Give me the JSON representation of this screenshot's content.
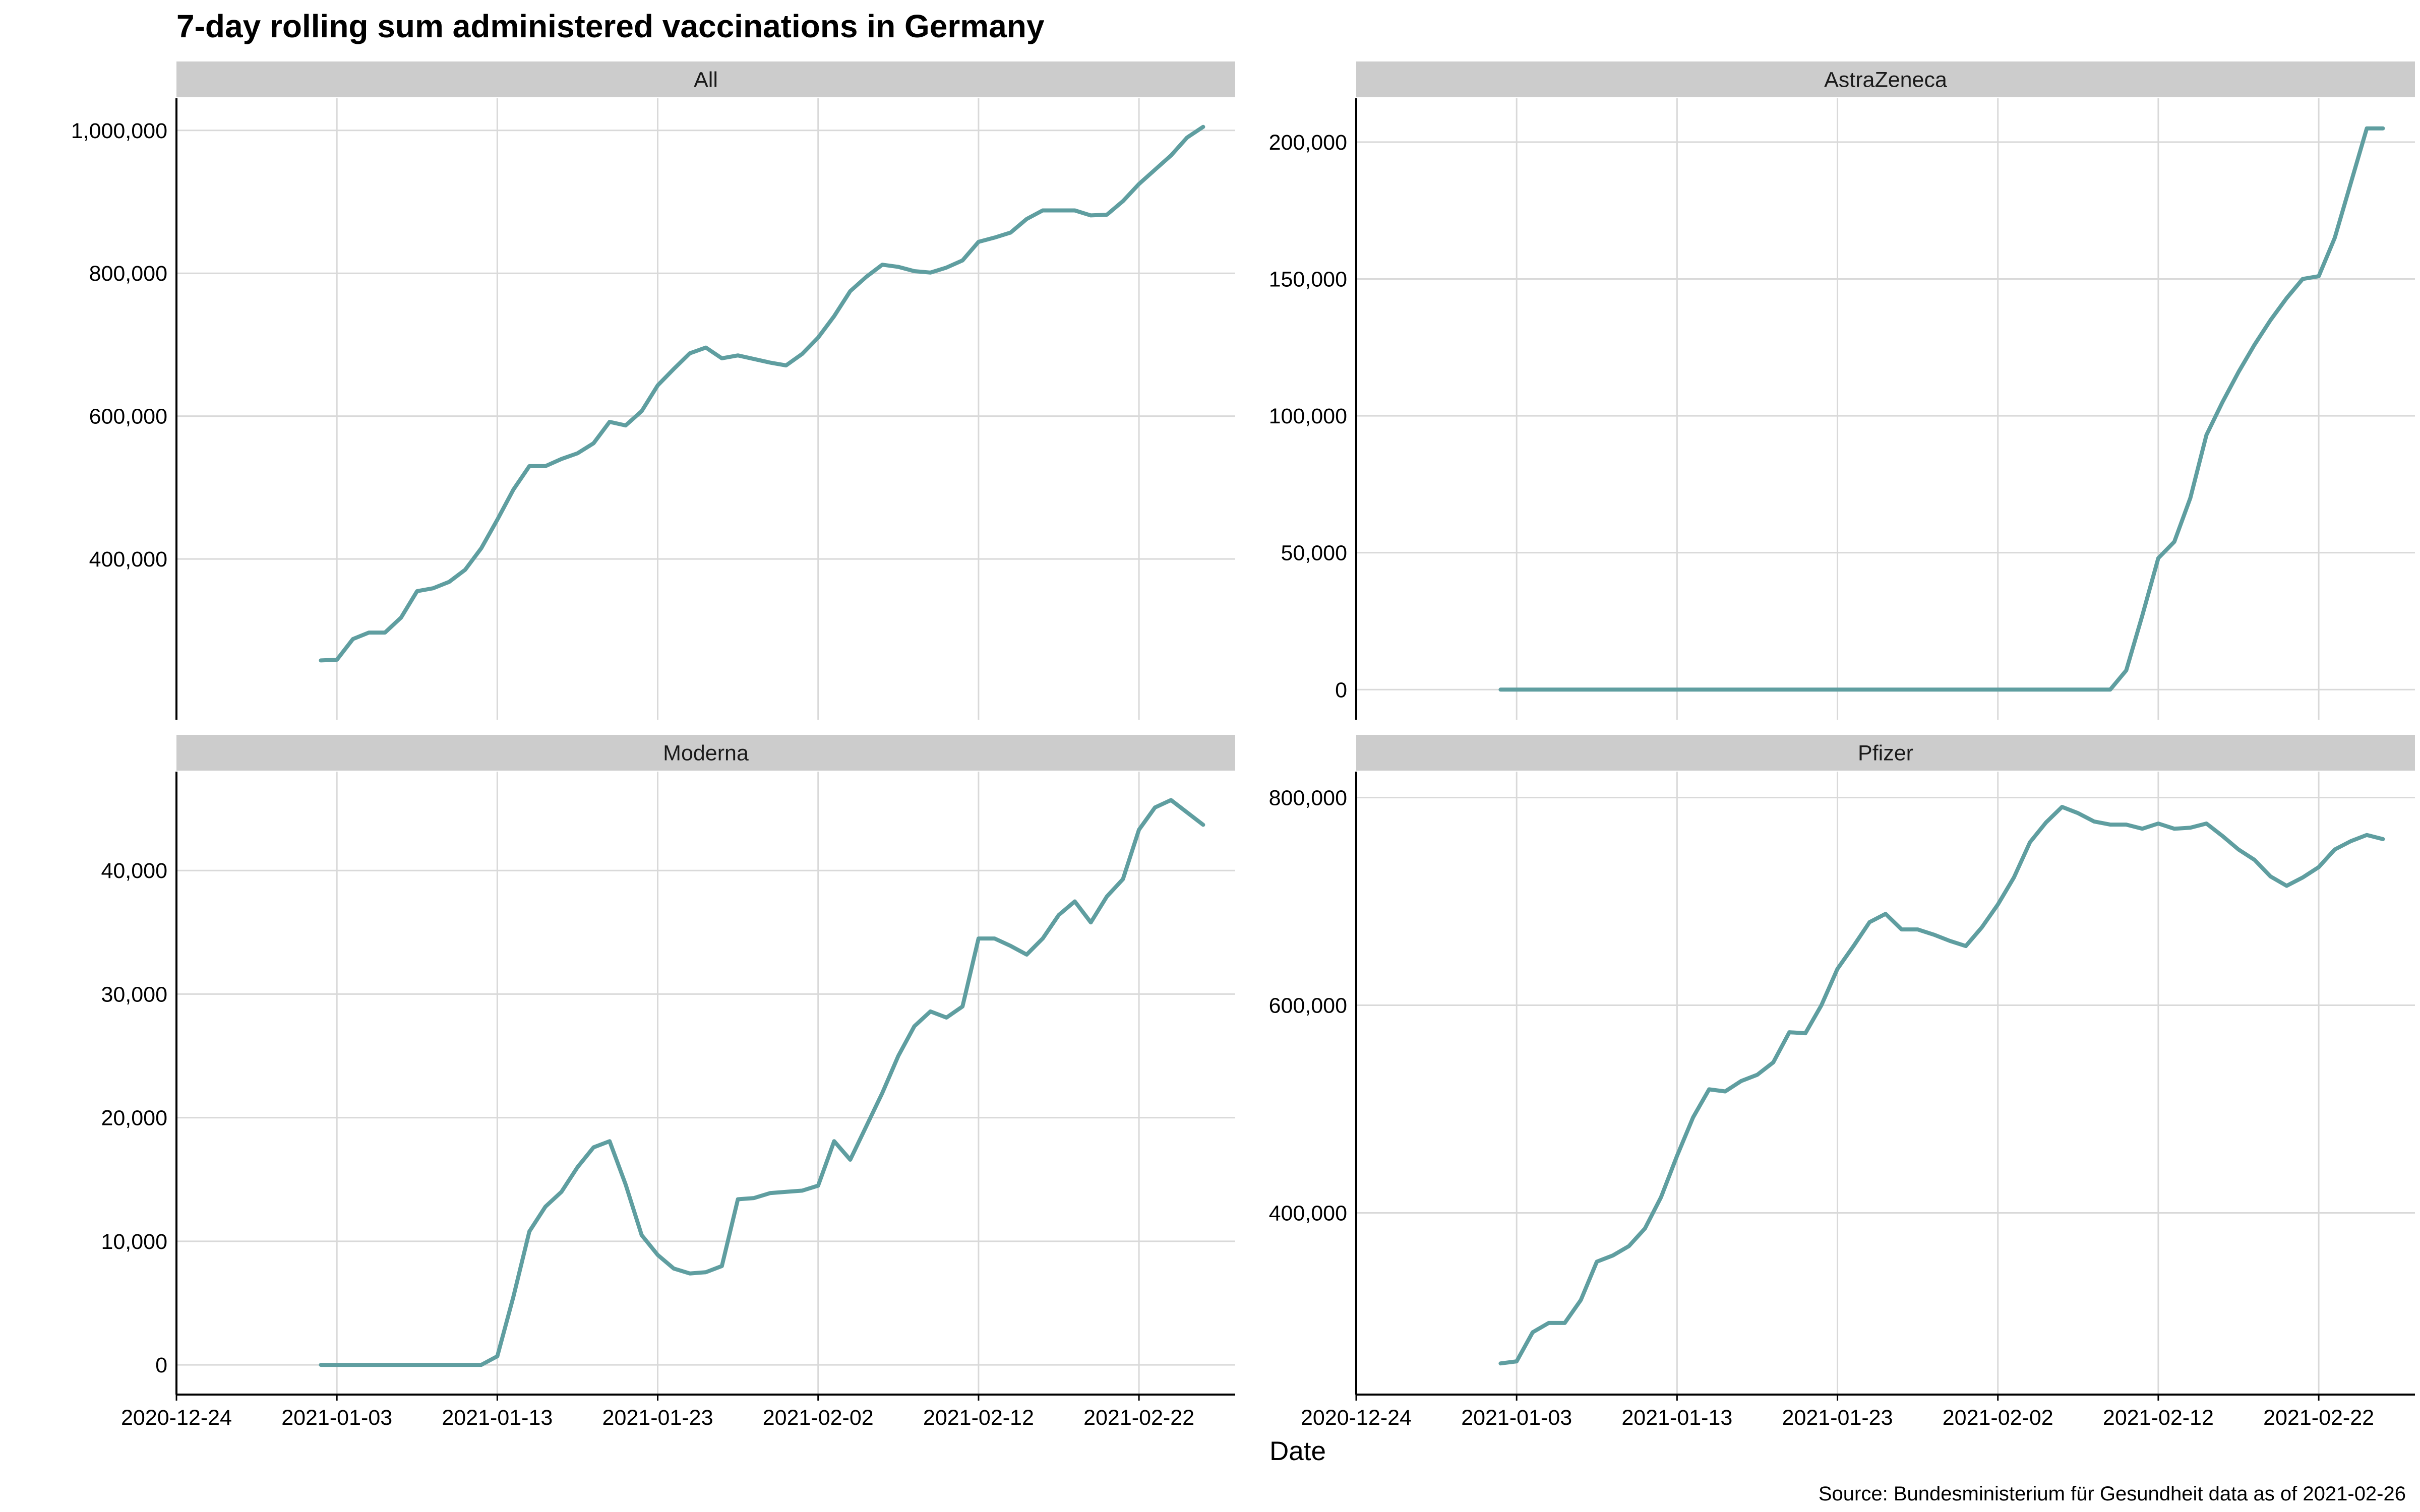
{
  "chart_data": {
    "type": "line",
    "title": "7-day rolling sum administered vaccinations in Germany",
    "xlabel": "Date",
    "ylabel": "",
    "caption": "Source: Bundesministerium für Gesundheit data as of 2021-02-26",
    "x_tick_labels": [
      "2020-12-24",
      "2021-01-03",
      "2021-01-13",
      "2021-01-23",
      "2021-02-02",
      "2021-02-12",
      "2021-02-22"
    ],
    "xlim": [
      "2020-12-24",
      "2021-02-28"
    ],
    "grid": true,
    "line_color": "#5f9ea0",
    "strip_color": "#cccccc",
    "grid_color": "#d9d9d9",
    "dates": [
      "2021-01-02",
      "2021-01-03",
      "2021-01-04",
      "2021-01-05",
      "2021-01-06",
      "2021-01-07",
      "2021-01-08",
      "2021-01-09",
      "2021-01-10",
      "2021-01-11",
      "2021-01-12",
      "2021-01-13",
      "2021-01-14",
      "2021-01-15",
      "2021-01-16",
      "2021-01-17",
      "2021-01-18",
      "2021-01-19",
      "2021-01-20",
      "2021-01-21",
      "2021-01-22",
      "2021-01-23",
      "2021-01-24",
      "2021-01-25",
      "2021-01-26",
      "2021-01-27",
      "2021-01-28",
      "2021-01-29",
      "2021-01-30",
      "2021-01-31",
      "2021-02-01",
      "2021-02-02",
      "2021-02-03",
      "2021-02-04",
      "2021-02-05",
      "2021-02-06",
      "2021-02-07",
      "2021-02-08",
      "2021-02-09",
      "2021-02-10",
      "2021-02-11",
      "2021-02-12",
      "2021-02-13",
      "2021-02-14",
      "2021-02-15",
      "2021-02-16",
      "2021-02-17",
      "2021-02-18",
      "2021-02-19",
      "2021-02-20",
      "2021-02-21",
      "2021-02-22",
      "2021-02-23",
      "2021-02-24",
      "2021-02-25",
      "2021-02-26"
    ],
    "panels": [
      {
        "name": "All",
        "y_ticks": [
          400000,
          600000,
          800000,
          1000000
        ],
        "y_tick_labels": [
          "400,000",
          "600,000",
          "800,000",
          "1,000,000"
        ],
        "ylim": [
          175000,
          1045000
        ],
        "values": [
          258000,
          259000,
          288000,
          297000,
          297000,
          318000,
          355000,
          359000,
          368000,
          385000,
          415000,
          455000,
          497000,
          530000,
          530000,
          540000,
          548000,
          562000,
          592000,
          587000,
          607000,
          643000,
          666000,
          688000,
          696000,
          681000,
          685000,
          680000,
          675000,
          671000,
          687000,
          710000,
          740000,
          775000,
          795000,
          812000,
          809000,
          803000,
          801000,
          808000,
          818000,
          844000,
          850000,
          857000,
          876000,
          888000,
          888000,
          888000,
          881000,
          882000,
          901000,
          925000,
          945000,
          965000,
          990000,
          1005000
        ]
      },
      {
        "name": "AstraZeneca",
        "y_ticks": [
          0,
          50000,
          100000,
          150000,
          200000
        ],
        "y_tick_labels": [
          "0",
          "50,000",
          "100,000",
          "150,000",
          "200,000"
        ],
        "ylim": [
          -11000,
          216000
        ],
        "values": [
          0,
          0,
          0,
          0,
          0,
          0,
          0,
          0,
          0,
          0,
          0,
          0,
          0,
          0,
          0,
          0,
          0,
          0,
          0,
          0,
          0,
          0,
          0,
          0,
          0,
          0,
          0,
          0,
          0,
          0,
          0,
          0,
          0,
          0,
          0,
          0,
          0,
          0,
          0,
          7000,
          27000,
          48000,
          54000,
          70000,
          93000,
          105000,
          116000,
          126000,
          135000,
          143000,
          150000,
          151000,
          165000,
          185000,
          205000,
          205000
        ]
      },
      {
        "name": "Moderna",
        "y_ticks": [
          0,
          10000,
          20000,
          30000,
          40000
        ],
        "y_tick_labels": [
          "0",
          "10,000",
          "20,000",
          "30,000",
          "40,000"
        ],
        "ylim": [
          -2400,
          48000
        ],
        "values": [
          0,
          0,
          0,
          0,
          0,
          0,
          0,
          0,
          0,
          0,
          0,
          700,
          5500,
          10800,
          12800,
          14000,
          16000,
          17600,
          18100,
          14600,
          10500,
          8900,
          7800,
          7400,
          7500,
          8000,
          13400,
          13500,
          13900,
          14000,
          14100,
          14500,
          18100,
          16600,
          19300,
          22000,
          25000,
          27400,
          28600,
          28100,
          29000,
          34500,
          34500,
          33900,
          33200,
          34500,
          36400,
          37500,
          35800,
          37900,
          39300,
          43300,
          45100,
          45700,
          44700,
          43700
        ]
      },
      {
        "name": "Pfizer",
        "y_ticks": [
          400000,
          600000,
          800000
        ],
        "y_tick_labels": [
          "400,000",
          "600,000",
          "800,000"
        ],
        "ylim": [
          225000,
          825000
        ],
        "values": [
          255000,
          257000,
          285000,
          294000,
          294000,
          316000,
          353000,
          359000,
          368000,
          385000,
          415000,
          455000,
          492000,
          519000,
          517000,
          527000,
          533000,
          545000,
          574000,
          573000,
          600000,
          635000,
          657000,
          680000,
          688000,
          673000,
          673000,
          668000,
          662000,
          657000,
          675000,
          697000,
          723000,
          757000,
          776000,
          791000,
          785000,
          777000,
          774000,
          774000,
          770000,
          775000,
          770000,
          771000,
          775000,
          763000,
          750000,
          740000,
          724000,
          715000,
          723000,
          733000,
          750000,
          758000,
          764000,
          760000
        ]
      }
    ]
  }
}
